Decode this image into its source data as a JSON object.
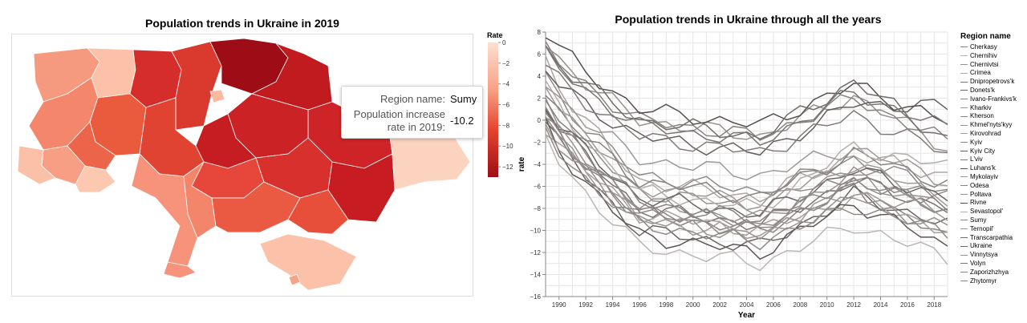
{
  "chart_data": [
    {
      "type": "choropleth",
      "title": "Population trends in Ukraine in 2019",
      "legend": {
        "title": "Rate",
        "range": [
          -13,
          0
        ],
        "ticks": [
          0,
          -2,
          -4,
          -6,
          -8,
          -10,
          -12
        ]
      },
      "tooltip": {
        "region_label": "Region name:",
        "region_value": "Sumy",
        "rate_label_line1": "Population increase",
        "rate_label_line2": "rate in 2019:",
        "rate_value": "-10.2"
      },
      "colors": {
        "low": "#67000d",
        "high": "#fde0d2"
      }
    },
    {
      "type": "line",
      "title": "Population trends in Ukraine through all the years",
      "xlabel": "Year",
      "ylabel": "rate",
      "xlim": [
        1989,
        2019
      ],
      "ylim": [
        -16,
        8
      ],
      "x_ticks": [
        1990,
        1992,
        1994,
        1996,
        1998,
        2000,
        2002,
        2004,
        2006,
        2008,
        2010,
        2012,
        2014,
        2016,
        2018
      ],
      "y_ticks": [
        8,
        6,
        4,
        2,
        0,
        -2,
        -4,
        -6,
        -8,
        -10,
        -12,
        -14,
        -16
      ],
      "grid": true,
      "legend_title": "Region name",
      "legend_position": "right",
      "series": [
        {
          "name": "Cherkasy",
          "start": 0.5,
          "bottom": -10.0,
          "end2012": -6.2,
          "end": -10.8,
          "shade": 0.6
        },
        {
          "name": "Chernihiv",
          "start": -1.5,
          "bottom": -13.0,
          "end2012": -9.5,
          "end": -12.5,
          "shade": 0.25
        },
        {
          "name": "Chernivtsi",
          "start": 7.0,
          "bottom": -1.5,
          "end2012": 2.2,
          "end": -2.5,
          "shade": 0.5
        },
        {
          "name": "Crimea",
          "start": 5.5,
          "bottom": -7.0,
          "end2012": -3.2,
          "end": -5.0,
          "shade": 0.35
        },
        {
          "name": "Dnipropetrovs'k",
          "start": 1.5,
          "bottom": -9.5,
          "end2012": -5.5,
          "end": -8.0,
          "shade": 0.7
        },
        {
          "name": "Donets'k",
          "start": 0.0,
          "bottom": -11.5,
          "end2012": -6.8,
          "end": -9.5,
          "shade": 0.8
        },
        {
          "name": "Ivano-Frankivs'k",
          "start": 6.5,
          "bottom": -1.5,
          "end2012": 2.0,
          "end": -2.0,
          "shade": 0.6
        },
        {
          "name": "Kharkiv",
          "start": 0.5,
          "bottom": -10.5,
          "end2012": -6.5,
          "end": -8.5,
          "shade": 0.45
        },
        {
          "name": "Kherson",
          "start": 4.0,
          "bottom": -6.5,
          "end2012": -3.5,
          "end": -6.5,
          "shade": 0.55
        },
        {
          "name": "Khmel'nyts'kyy",
          "start": 2.0,
          "bottom": -8.0,
          "end2012": -4.3,
          "end": -7.8,
          "shade": 0.5
        },
        {
          "name": "Kirovohrad",
          "start": -0.5,
          "bottom": -10.0,
          "end2012": -7.0,
          "end": -10.0,
          "shade": 0.4
        },
        {
          "name": "Kyiv",
          "start": 0.0,
          "bottom": -10.0,
          "end2012": -5.8,
          "end": -7.2,
          "shade": 0.55
        },
        {
          "name": "Kyiv City",
          "start": 4.5,
          "bottom": -3.0,
          "end2012": 1.5,
          "end": 1.2,
          "shade": 0.85
        },
        {
          "name": "L'viv",
          "start": 5.0,
          "bottom": -3.0,
          "end2012": 0.5,
          "end": -3.0,
          "shade": 0.65
        },
        {
          "name": "Luhans'k",
          "start": -0.5,
          "bottom": -12.0,
          "end2012": -7.5,
          "end": -11.5,
          "shade": 0.9
        },
        {
          "name": "Mykolayiv",
          "start": 3.5,
          "bottom": -7.5,
          "end2012": -4.0,
          "end": -7.0,
          "shade": 0.45
        },
        {
          "name": "Odesa",
          "start": 2.5,
          "bottom": -7.0,
          "end2012": -3.0,
          "end": -5.8,
          "shade": 0.6
        },
        {
          "name": "Poltava",
          "start": -0.5,
          "bottom": -10.5,
          "end2012": -7.0,
          "end": -9.8,
          "shade": 0.5
        },
        {
          "name": "Rivne",
          "start": 8.0,
          "bottom": -0.5,
          "end2012": 3.2,
          "end": -0.2,
          "shade": 0.95
        },
        {
          "name": "Sevastopol'",
          "start": 3.0,
          "bottom": -8.0,
          "end2012": -2.5,
          "end": -4.2,
          "shade": 0.3
        },
        {
          "name": "Sumy",
          "start": -1.0,
          "bottom": -11.0,
          "end2012": -7.8,
          "end": -10.2,
          "shade": 0.55
        },
        {
          "name": "Ternopil'",
          "start": 3.5,
          "bottom": -5.0,
          "end2012": -2.5,
          "end": -5.5,
          "shade": 0.45
        },
        {
          "name": "Transcarpathia",
          "start": 6.5,
          "bottom": -1.5,
          "end2012": 3.5,
          "end": -1.8,
          "shade": 0.75
        },
        {
          "name": "Ukraine",
          "start": 1.5,
          "bottom": -8.5,
          "end2012": -4.5,
          "end": -7.0,
          "shade": 0.8
        },
        {
          "name": "Vinnytsya",
          "start": 0.5,
          "bottom": -9.0,
          "end2012": -5.0,
          "end": -8.5,
          "shade": 0.5
        },
        {
          "name": "Volyn",
          "start": 6.0,
          "bottom": -2.0,
          "end2012": 2.5,
          "end": -0.8,
          "shade": 0.7
        },
        {
          "name": "Zaporizhzhya",
          "start": 2.0,
          "bottom": -9.0,
          "end2012": -5.0,
          "end": -7.5,
          "shade": 0.6
        },
        {
          "name": "Zhytomyr",
          "start": 0.5,
          "bottom": -9.5,
          "end2012": -5.5,
          "end": -8.2,
          "shade": 0.55
        }
      ]
    }
  ]
}
